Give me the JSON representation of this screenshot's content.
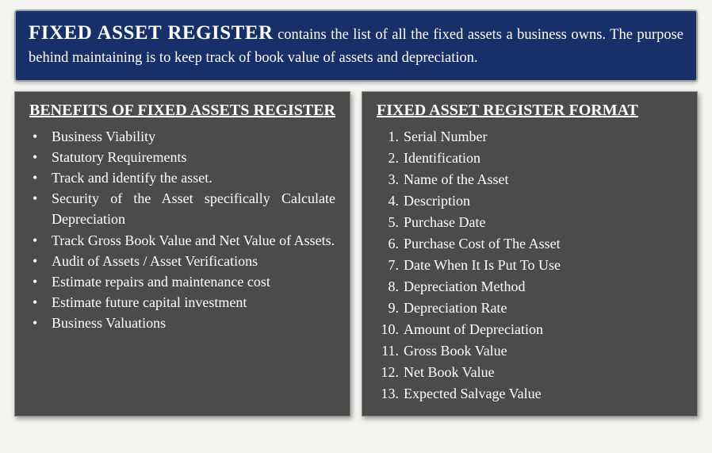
{
  "header": {
    "title": "FIXED ASSET REGISTER",
    "body": "contains the list of all the fixed assets a business owns. The purpose behind maintaining is to keep track of book value of assets and depreciation."
  },
  "left": {
    "title": "BENEFITS OF FIXED ASSETS REGISTER",
    "items": [
      "Business Viability",
      "Statutory Requirements",
      "Track and identify the asset.",
      "Security of the Asset specifically Calculate Depreciation",
      "Track Gross Book Value and Net Value of Assets.",
      "Audit of Assets / Asset Verifications",
      "Estimate repairs and maintenance cost",
      "Estimate future capital investment",
      "Business Valuations"
    ]
  },
  "right": {
    "title": "FIXED ASSET REGISTER  FORMAT",
    "items": [
      "Serial Number",
      "Identification",
      "Name of the Asset",
      "Description",
      "Purchase Date",
      "Purchase Cost of The Asset",
      "Date When It Is Put To Use",
      "Depreciation Method",
      "Depreciation Rate",
      "Amount of Depreciation",
      "Gross Book Value",
      "Net Book Value",
      "Expected Salvage Value"
    ]
  },
  "colors": {
    "header_bg": "#18306a",
    "panel_bg": "#4b4b4b",
    "page_bg": "#f4f4f0",
    "text": "#ffffff"
  }
}
